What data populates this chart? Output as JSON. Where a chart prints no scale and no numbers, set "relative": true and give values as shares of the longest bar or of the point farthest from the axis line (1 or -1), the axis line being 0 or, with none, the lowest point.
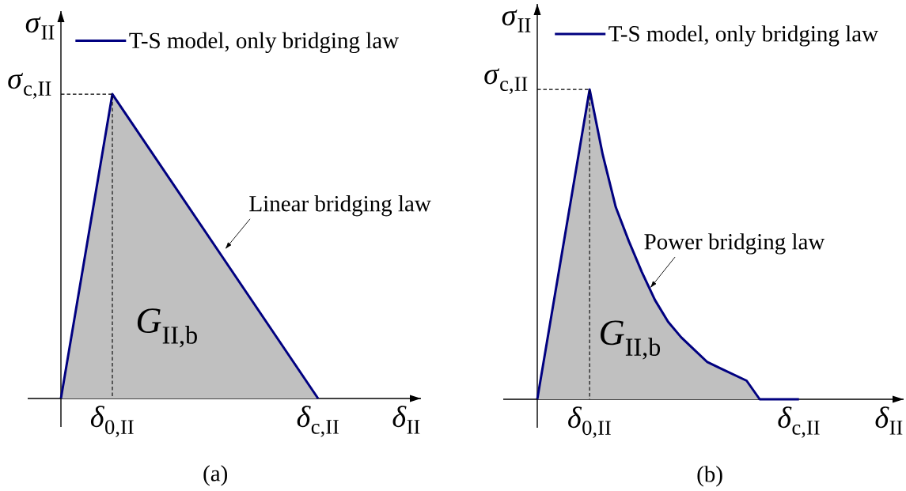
{
  "chart_data": [
    {
      "type": "area",
      "relative": true,
      "xlabel": "*δ*$_{II}$",
      "ylabel": "*σ*$_{II}$",
      "categories": [
        null,
        "*δ*$_{0,II}$",
        null,
        null,
        null,
        "*δ*$_{c,II}$",
        null,
        null
      ],
      "series": [
        {
          "name": "T-S model, only bridging law",
          "color": "#000080",
          "values": [
            0,
            1,
            0.75,
            0.5,
            0.25,
            0,
            null,
            null
          ]
        }
      ],
      "legend": "top",
      "annotations": [
        {
          "text": "*σ*$_{c,II}$",
          "x": "*δ*$_{0,II}$",
          "y": 1
        },
        "Linear bridging law",
        "*G*$_{II,b}$",
        "(a)"
      ]
    },
    {
      "type": "area",
      "relative": true,
      "xlabel": "*δ*$_{II}$",
      "ylabel": "*σ*$_{II}$",
      "categories": [
        null,
        null,
        null,
        null,
        "*δ*$_{0,II}$",
        null,
        null,
        null,
        null,
        null,
        null,
        null,
        null,
        null,
        null,
        null,
        null,
        null,
        null,
        null,
        "*δ*$_{c,II}$",
        null,
        null,
        null,
        null,
        null,
        null,
        null,
        null
      ],
      "series": [
        {
          "name": "T-S model, only bridging law",
          "color": "#000080",
          "values": [
            0,
            0.25,
            0.5,
            0.75,
            1,
            0.79,
            0.62,
            0.51,
            0.41,
            0.32,
            0.25,
            0.2,
            0.16,
            0.12,
            0.1,
            0.08,
            0.06,
            0,
            0,
            0,
            0,
            null,
            null,
            null,
            null,
            null,
            null,
            null,
            null
          ]
        }
      ],
      "legend": "top",
      "annotations": [
        {
          "text": "*σ*$_{c,II}$",
          "x": "*δ*$_{0,II}$",
          "y": 1
        },
        "Power bridging law",
        "*G*$_{II,b}$",
        "(b)"
      ]
    }
  ]
}
